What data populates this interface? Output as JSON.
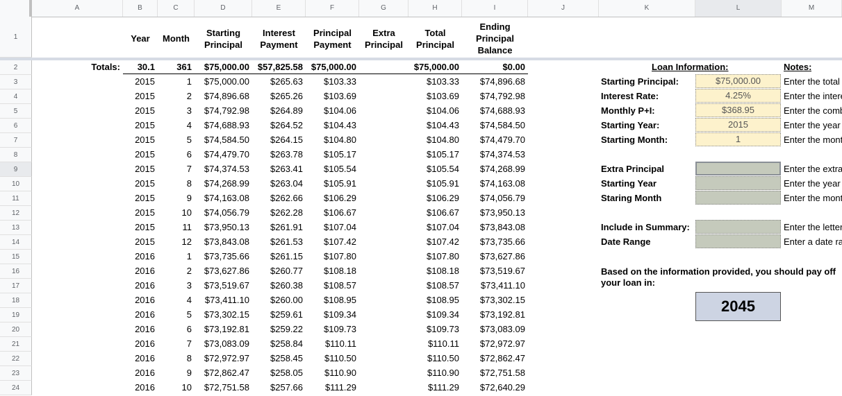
{
  "column_headers": [
    "A",
    "B",
    "C",
    "D",
    "E",
    "F",
    "G",
    "H",
    "I",
    "J",
    "K",
    "L",
    "M"
  ],
  "row_numbers": [
    "1",
    "2",
    "3",
    "4",
    "5",
    "6",
    "7",
    "8",
    "9",
    "10",
    "11",
    "12",
    "13",
    "14",
    "15",
    "16",
    "17",
    "18",
    "19",
    "20",
    "21",
    "22",
    "23",
    "24"
  ],
  "table_headers": {
    "year": "Year",
    "month": "Month",
    "starting_principal": "Starting Principal",
    "interest_payment": "Interest Payment",
    "principal_payment": "Principal Payment",
    "extra_principal": "Extra Principal",
    "total_principal": "Total Principal",
    "ending_balance": "Ending Principal Balance"
  },
  "totals": {
    "label": "Totals:",
    "year": "30.1",
    "month": "361",
    "starting_principal": "$75,000.00",
    "interest": "$57,825.58",
    "principal": "$75,000.00",
    "total_principal": "$75,000.00",
    "ending": "$0.00"
  },
  "rows": [
    [
      "2015",
      "1",
      "$75,000.00",
      "$265.63",
      "$103.33",
      "$103.33",
      "$74,896.68"
    ],
    [
      "2015",
      "2",
      "$74,896.68",
      "$265.26",
      "$103.69",
      "$103.69",
      "$74,792.98"
    ],
    [
      "2015",
      "3",
      "$74,792.98",
      "$264.89",
      "$104.06",
      "$104.06",
      "$74,688.93"
    ],
    [
      "2015",
      "4",
      "$74,688.93",
      "$264.52",
      "$104.43",
      "$104.43",
      "$74,584.50"
    ],
    [
      "2015",
      "5",
      "$74,584.50",
      "$264.15",
      "$104.80",
      "$104.80",
      "$74,479.70"
    ],
    [
      "2015",
      "6",
      "$74,479.70",
      "$263.78",
      "$105.17",
      "$105.17",
      "$74,374.53"
    ],
    [
      "2015",
      "7",
      "$74,374.53",
      "$263.41",
      "$105.54",
      "$105.54",
      "$74,268.99"
    ],
    [
      "2015",
      "8",
      "$74,268.99",
      "$263.04",
      "$105.91",
      "$105.91",
      "$74,163.08"
    ],
    [
      "2015",
      "9",
      "$74,163.08",
      "$262.66",
      "$106.29",
      "$106.29",
      "$74,056.79"
    ],
    [
      "2015",
      "10",
      "$74,056.79",
      "$262.28",
      "$106.67",
      "$106.67",
      "$73,950.13"
    ],
    [
      "2015",
      "11",
      "$73,950.13",
      "$261.91",
      "$107.04",
      "$107.04",
      "$73,843.08"
    ],
    [
      "2015",
      "12",
      "$73,843.08",
      "$261.53",
      "$107.42",
      "$107.42",
      "$73,735.66"
    ],
    [
      "2016",
      "1",
      "$73,735.66",
      "$261.15",
      "$107.80",
      "$107.80",
      "$73,627.86"
    ],
    [
      "2016",
      "2",
      "$73,627.86",
      "$260.77",
      "$108.18",
      "$108.18",
      "$73,519.67"
    ],
    [
      "2016",
      "3",
      "$73,519.67",
      "$260.38",
      "$108.57",
      "$108.57",
      "$73,411.10"
    ],
    [
      "2016",
      "4",
      "$73,411.10",
      "$260.00",
      "$108.95",
      "$108.95",
      "$73,302.15"
    ],
    [
      "2016",
      "5",
      "$73,302.15",
      "$259.61",
      "$109.34",
      "$109.34",
      "$73,192.81"
    ],
    [
      "2016",
      "6",
      "$73,192.81",
      "$259.22",
      "$109.73",
      "$109.73",
      "$73,083.09"
    ],
    [
      "2016",
      "7",
      "$73,083.09",
      "$258.84",
      "$110.11",
      "$110.11",
      "$72,972.97"
    ],
    [
      "2016",
      "8",
      "$72,972.97",
      "$258.45",
      "$110.50",
      "$110.50",
      "$72,862.47"
    ],
    [
      "2016",
      "9",
      "$72,862.47",
      "$258.05",
      "$110.90",
      "$110.90",
      "$72,751.58"
    ],
    [
      "2016",
      "10",
      "$72,751.58",
      "$257.66",
      "$111.29",
      "$111.29",
      "$72,640.29"
    ]
  ],
  "loan_info": {
    "title": "Loan Information:",
    "notes_title": "Notes:",
    "starting_principal_label": "Starting Principal:",
    "starting_principal_value": "$75,000.00",
    "interest_rate_label": "Interest Rate:",
    "interest_rate_value": "4.25%",
    "monthly_pi_label": "Monthly P+I:",
    "monthly_pi_value": "$368.95",
    "starting_year_label": "Starting Year:",
    "starting_year_value": "2015",
    "starting_month_label": "Starting Month:",
    "starting_month_value": "1",
    "extra_principal_label": "Extra Principal",
    "extra_starting_year_label": "Starting Year",
    "extra_starting_month_label": "Staring Month",
    "include_summary_label": "Include in Summary:",
    "date_range_label": "Date Range",
    "result_text": "Based on the information provided, you should pay off your loan in:",
    "result_value": "2045"
  },
  "notes": [
    "Enter the total",
    "Enter the intere",
    "Enter the comb",
    "Enter the year",
    "Enter the mont",
    "Enter the extra",
    "Enter the year",
    "Enter the mont",
    "Enter the letter",
    "Enter a date ra"
  ]
}
